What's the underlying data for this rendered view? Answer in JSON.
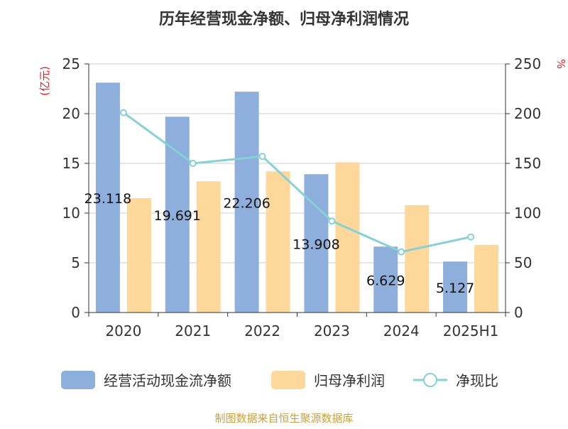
{
  "chart_data": {
    "type": "bar",
    "title": "历年经营现金净额、归母净利润情况",
    "categories": [
      "2020",
      "2021",
      "2022",
      "2023",
      "2024",
      "2025H1"
    ],
    "series": [
      {
        "name": "经营活动现金流净额",
        "kind": "bar",
        "axis": "left",
        "color": "#8eaedb",
        "values": [
          23.118,
          19.691,
          22.206,
          13.908,
          6.629,
          5.127
        ],
        "labels": [
          "23.118",
          "19.691",
          "22.206",
          "13.908",
          "6.629",
          "5.127"
        ]
      },
      {
        "name": "归母净利润",
        "kind": "bar",
        "axis": "left",
        "color": "#fed89a",
        "values": [
          11.5,
          13.2,
          14.2,
          15.1,
          10.8,
          6.8
        ]
      },
      {
        "name": "净现比",
        "kind": "line",
        "axis": "right",
        "color": "#86d0d6",
        "values": [
          201,
          150,
          157,
          92,
          61,
          76
        ]
      }
    ],
    "y_left": {
      "label": "(亿元)",
      "min": 0,
      "max": 25,
      "ticks": [
        "0",
        "5",
        "10",
        "15",
        "20",
        "25"
      ],
      "tick_values": [
        0,
        5,
        10,
        15,
        20,
        25
      ]
    },
    "y_right": {
      "label": "%",
      "min": 0,
      "max": 250,
      "ticks": [
        "0",
        "50",
        "100",
        "150",
        "200",
        "250"
      ],
      "tick_values": [
        0,
        50,
        100,
        150,
        200,
        250
      ]
    },
    "grid": true,
    "legend_position": "bottom",
    "source": "制图数据来自恒生聚源数据库",
    "colors": {
      "axis_label_red": "#e02020",
      "source_text": "#c8a040",
      "grid": "#cccccc",
      "axis": "#333333"
    }
  }
}
